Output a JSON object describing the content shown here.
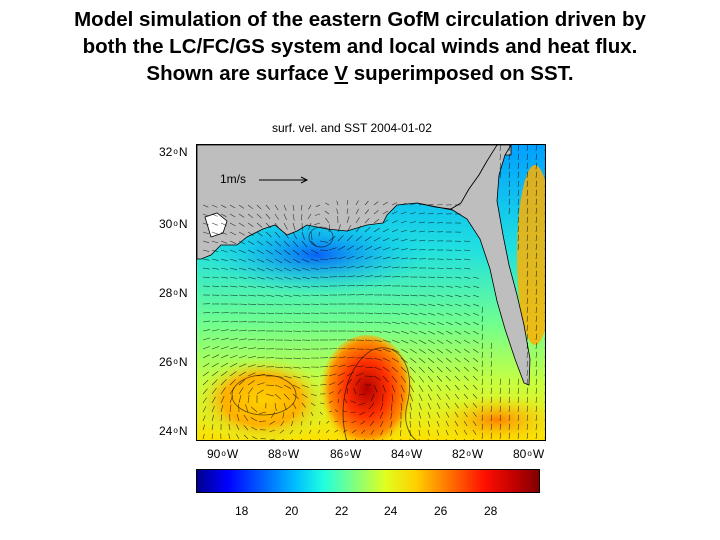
{
  "slide": {
    "title_line1": "Model simulation of the eastern GofM circulation driven by",
    "title_line2": "both the LC/FC/GS system and local winds and heat flux.",
    "title_line3_pre": "Shown are surface ",
    "title_line3_v": "V",
    "title_line3_post": " superimposed on SST."
  },
  "map": {
    "title": "surf. vel. and SST 2004-01-02",
    "scale_label": "1m/s",
    "lat_labels": [
      {
        "deg": "32",
        "sup": "o",
        "hem": "N"
      },
      {
        "deg": "30",
        "sup": "o",
        "hem": "N"
      },
      {
        "deg": "28",
        "sup": "o",
        "hem": "N"
      },
      {
        "deg": "26",
        "sup": "o",
        "hem": "N"
      },
      {
        "deg": "24",
        "sup": "o",
        "hem": "N"
      }
    ],
    "lon_labels": [
      {
        "deg": "90",
        "sup": "o",
        "hem": "W"
      },
      {
        "deg": "88",
        "sup": "o",
        "hem": "W"
      },
      {
        "deg": "86",
        "sup": "o",
        "hem": "W"
      },
      {
        "deg": "84",
        "sup": "o",
        "hem": "W"
      },
      {
        "deg": "82",
        "sup": "o",
        "hem": "W"
      },
      {
        "deg": "80",
        "sup": "o",
        "hem": "W"
      }
    ],
    "land_color": "#bebebe"
  },
  "colorbar": {
    "ticks": [
      "18",
      "20",
      "22",
      "24",
      "26",
      "28"
    ]
  }
}
